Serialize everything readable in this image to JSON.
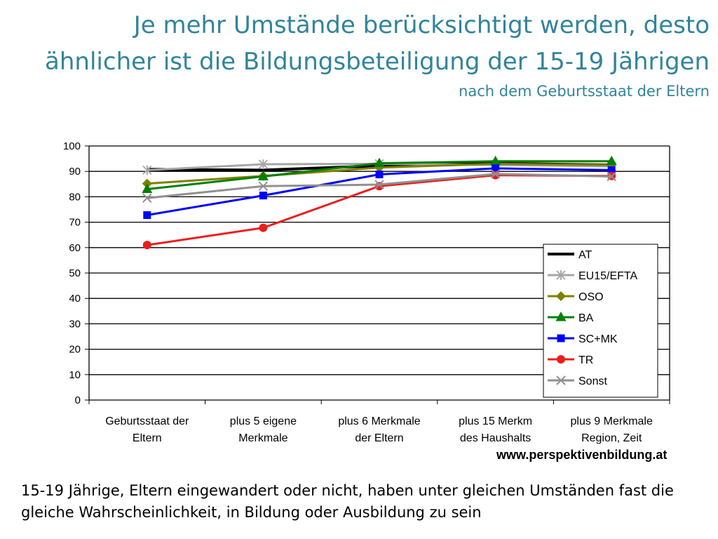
{
  "slide": {
    "title_line1": "Je mehr Umstände berücksichtigt werden, desto",
    "title_line2": "ähnlicher ist die Bildungsbeteiligung der 15-19 Jährigen",
    "subtitle": "nach dem Geburtsstaat der Eltern",
    "source": "www.perspektivenbildung.at",
    "caption": "15-19 Jährige, Eltern eingewandert oder nicht, haben unter gleichen Umständen fast die gleiche Wahrscheinlichkeit, in Bildung oder Ausbildung zu sein",
    "title_color": "#31849b"
  },
  "chart_data": {
    "type": "line",
    "categories": [
      [
        "Geburtsstaat der",
        "Eltern"
      ],
      [
        "plus 5 eigene",
        "Merkmale"
      ],
      [
        "plus 6 Merkmale",
        "der Eltern"
      ],
      [
        "plus 15 Merkm",
        "des Haushalts"
      ],
      [
        "plus 9 Merkmale",
        "Region, Zeit"
      ]
    ],
    "ylim": [
      0,
      100
    ],
    "yticks": [
      0,
      10,
      20,
      30,
      40,
      50,
      60,
      70,
      80,
      90,
      100
    ],
    "grid": true,
    "legend_position": "lower-right",
    "series": [
      {
        "name": "AT",
        "color": "#000000",
        "marker": "none",
        "values": [
          90.8,
          90.5,
          92.2,
          93.2,
          92.5
        ]
      },
      {
        "name": "EU15/EFTA",
        "color": "#a6a6a6",
        "marker": "asterisk",
        "values": [
          90.5,
          92.8,
          93.0,
          92.5,
          92.0
        ]
      },
      {
        "name": "OSO",
        "color": "#7f7f00",
        "marker": "diamond",
        "values": [
          85.2,
          88.2,
          91.5,
          93.0,
          92.5
        ]
      },
      {
        "name": "BA",
        "color": "#008000",
        "marker": "triangle",
        "values": [
          83.0,
          88.0,
          93.2,
          94.0,
          94.0
        ]
      },
      {
        "name": "SC+MK",
        "color": "#0000ff",
        "marker": "square",
        "values": [
          72.8,
          80.5,
          88.8,
          91.2,
          90.5
        ]
      },
      {
        "name": "TR",
        "color": "#ee1c1c",
        "marker": "circle",
        "values": [
          61.0,
          67.8,
          84.2,
          88.5,
          88.2
        ]
      },
      {
        "name": "Sonst",
        "color": "#909090",
        "marker": "x",
        "values": [
          79.5,
          84.2,
          84.8,
          89.0,
          88.0
        ]
      }
    ]
  }
}
